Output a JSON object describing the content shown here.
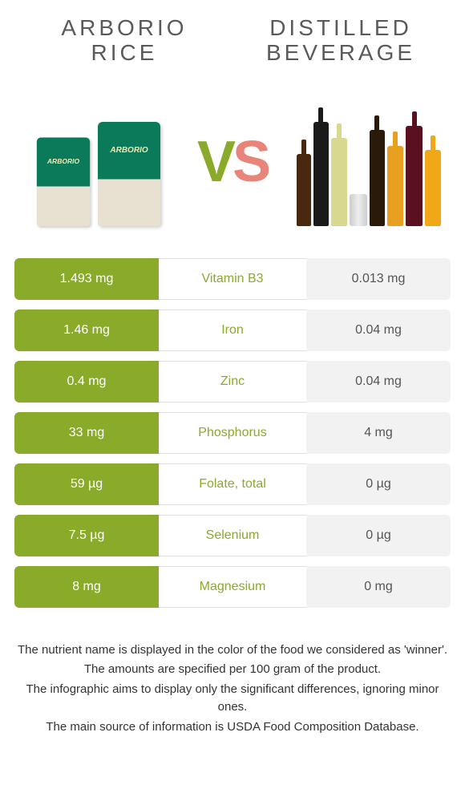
{
  "header": {
    "left_title_line1": "ARBORIO",
    "left_title_line2": "RICE",
    "right_title_line1": "DISTILLED",
    "right_title_line2": "BEVERAGE"
  },
  "vs": {
    "v": "V",
    "s": "S"
  },
  "colors": {
    "left_accent": "#8aaa2a",
    "right_accent": "#e8847a",
    "neutral_bg": "#f2f2f2",
    "left_text": "#ffffff",
    "mid_border": "#e0e0e0"
  },
  "rows": [
    {
      "left": "1.493 mg",
      "label": "Vitamin B3",
      "right": "0.013 mg",
      "winner": "left"
    },
    {
      "left": "1.46 mg",
      "label": "Iron",
      "right": "0.04 mg",
      "winner": "left"
    },
    {
      "left": "0.4 mg",
      "label": "Zinc",
      "right": "0.04 mg",
      "winner": "left"
    },
    {
      "left": "33 mg",
      "label": "Phosphorus",
      "right": "4 mg",
      "winner": "left"
    },
    {
      "left": "59 µg",
      "label": "Folate, total",
      "right": "0 µg",
      "winner": "left"
    },
    {
      "left": "7.5 µg",
      "label": "Selenium",
      "right": "0 µg",
      "winner": "left"
    },
    {
      "left": "8 mg",
      "label": "Magnesium",
      "right": "0 mg",
      "winner": "left"
    }
  ],
  "footnotes": {
    "l1": "The nutrient name is displayed in the color of the food we considered as 'winner'.",
    "l2": "The amounts are specified per 100 gram of the product.",
    "l3": "The infographic aims to display only the significant differences, ignoring minor ones.",
    "l4": "The main source of information is USDA Food Composition Database."
  }
}
